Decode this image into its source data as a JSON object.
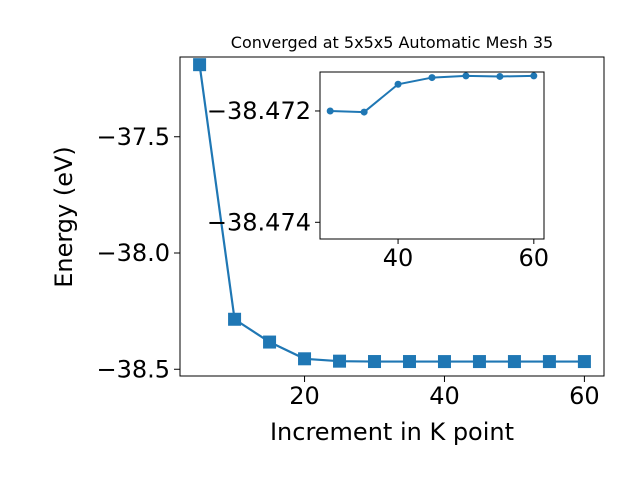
{
  "colors": {
    "series": "#1f77b4",
    "axes": "#000000",
    "background": "#ffffff"
  },
  "chart_data": [
    {
      "type": "line",
      "title": "Converged at 5x5x5 Automatic Mesh 35",
      "xlabel": "Increment in K point",
      "ylabel": "Energy (eV)",
      "xlim": [
        2.2,
        62.8
      ],
      "ylim": [
        -38.529,
        -37.157
      ],
      "xticks": [
        20,
        40,
        60
      ],
      "xtick_labels": [
        "20",
        "40",
        "60"
      ],
      "yticks": [
        -37.5,
        -38.0,
        -38.5
      ],
      "ytick_labels": [
        "−37.5",
        "−38.0",
        "−38.5"
      ],
      "marker": "square",
      "grid": false,
      "x": [
        5,
        10,
        15,
        20,
        25,
        30,
        35,
        40,
        45,
        50,
        55,
        60
      ],
      "series": [
        {
          "values": [
            -37.19,
            -38.285,
            -38.383,
            -38.455,
            -38.4652,
            -38.4668,
            -38.4668,
            -38.467,
            -38.4669,
            -38.4669,
            -38.4669,
            -38.4669
          ]
        }
      ]
    },
    {
      "type": "line",
      "title": "",
      "xlabel": "",
      "ylabel": "",
      "xlim": [
        28.5,
        61.5
      ],
      "ylim": [
        -38.4743,
        -38.4713
      ],
      "xticks": [
        40,
        60
      ],
      "xtick_labels": [
        "40",
        "60"
      ],
      "yticks": [
        -38.474,
        -38.472
      ],
      "ytick_labels": [
        "−38.474",
        "−38.472"
      ],
      "marker": "circle",
      "grid": false,
      "x": [
        30,
        35,
        40,
        45,
        50,
        55,
        60
      ],
      "series": [
        {
          "values": [
            -38.472,
            -38.47202,
            -38.47152,
            -38.4714,
            -38.47137,
            -38.47138,
            -38.47137
          ]
        }
      ]
    }
  ]
}
